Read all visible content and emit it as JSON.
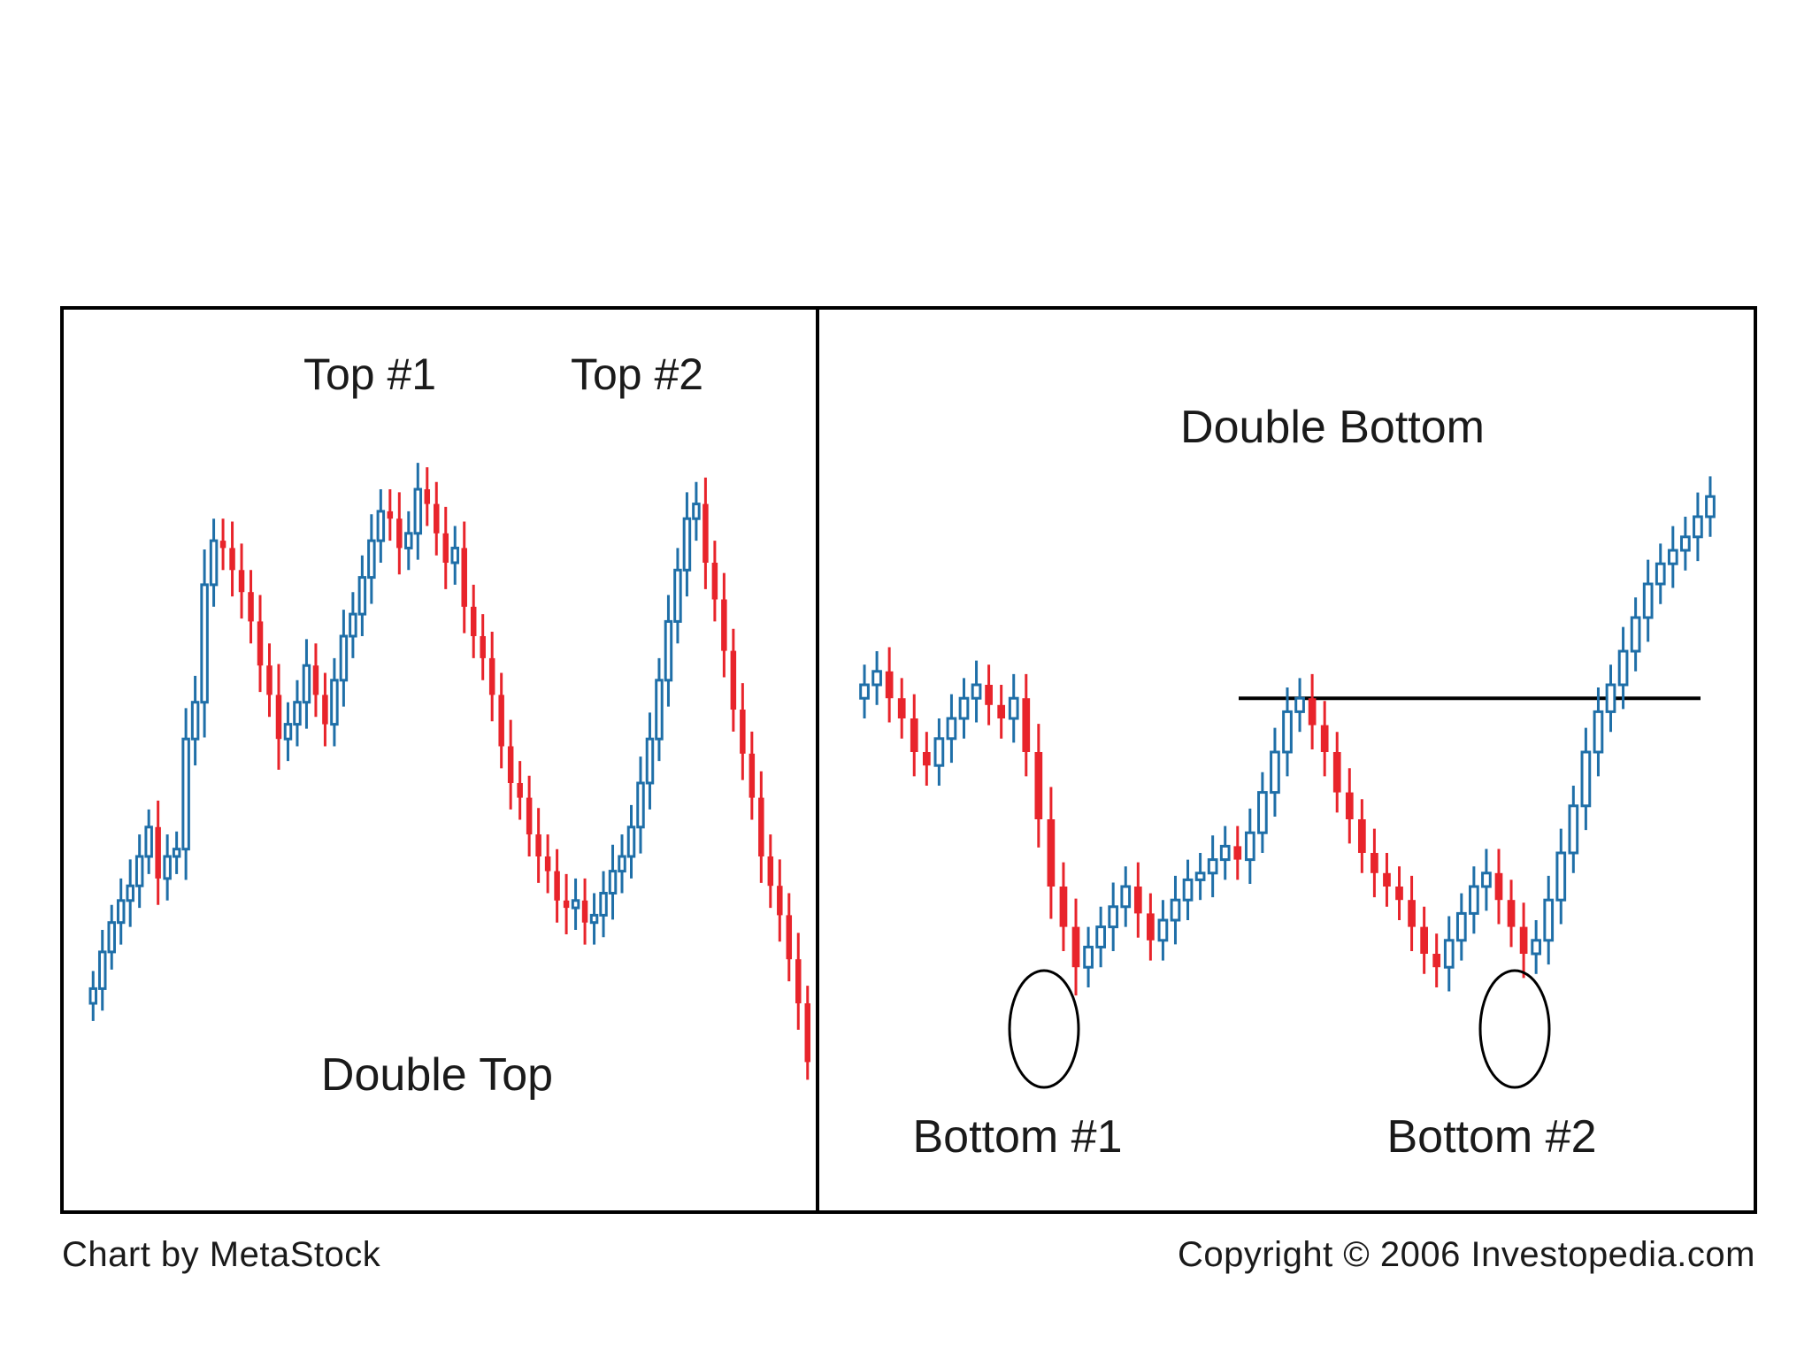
{
  "colors": {
    "up": "#1f6fa8",
    "down": "#e8242b",
    "frame": "#000000",
    "text": "#1a1a1a"
  },
  "footer": {
    "left": "Chart by MetaStock",
    "right": "Copyright © 2006 Investopedia.com"
  },
  "chart_data": [
    {
      "type": "candlestick",
      "title": "Double Top",
      "annotations": [
        {
          "text": "Top #1"
        },
        {
          "text": "Top #2"
        }
      ],
      "ylim": [
        0,
        100
      ],
      "closes": [
        22,
        27,
        31,
        34,
        36,
        40,
        44,
        37,
        40,
        41,
        56,
        61,
        77,
        83,
        82,
        79,
        76,
        72,
        66,
        62,
        56,
        58,
        61,
        66,
        62,
        58,
        64,
        70,
        73,
        78,
        83,
        87,
        86,
        82,
        84,
        90,
        88,
        84,
        80,
        82,
        74,
        70,
        67,
        62,
        55,
        50,
        48,
        43,
        40,
        38,
        34,
        33,
        34,
        31,
        32,
        35,
        38,
        40,
        44,
        50,
        56,
        64,
        72,
        79,
        86,
        88,
        80,
        75,
        68,
        60,
        54,
        48,
        40,
        36,
        32,
        26,
        20,
        12
      ],
      "ranges": [
        4,
        5,
        4,
        5,
        6,
        5,
        4,
        6,
        5,
        4,
        7,
        6,
        8,
        5,
        5,
        6,
        6,
        5,
        6,
        5,
        7,
        5,
        5,
        6,
        5,
        5,
        5,
        6,
        5,
        5,
        6,
        5,
        5,
        6,
        5,
        6,
        5,
        5,
        6,
        5,
        6,
        5,
        5,
        6,
        5,
        6,
        5,
        5,
        6,
        5,
        5,
        6,
        5,
        5,
        5,
        5,
        6,
        5,
        5,
        6,
        6,
        5,
        6,
        5,
        6,
        5,
        6,
        5,
        6,
        5,
        6,
        5,
        6,
        5,
        6,
        5,
        6,
        4
      ]
    },
    {
      "type": "candlestick",
      "title": "Double Bottom",
      "annotations": [
        {
          "text": "Bottom #1"
        },
        {
          "text": "Bottom #2"
        }
      ],
      "ylim": [
        0,
        100
      ],
      "resistance_level": 58,
      "closes": [
        60,
        62,
        58,
        55,
        50,
        48,
        52,
        55,
        58,
        60,
        57,
        55,
        58,
        50,
        40,
        30,
        24,
        18,
        21,
        24,
        27,
        30,
        26,
        22,
        25,
        28,
        31,
        32,
        34,
        36,
        34,
        38,
        44,
        50,
        56,
        58,
        54,
        50,
        44,
        40,
        35,
        32,
        30,
        28,
        24,
        20,
        18,
        22,
        26,
        30,
        32,
        28,
        24,
        20,
        22,
        28,
        35,
        42,
        50,
        56,
        60,
        65,
        70,
        75,
        78,
        80,
        82,
        85,
        88
      ],
      "ranges": [
        5,
        5,
        6,
        5,
        6,
        5,
        5,
        6,
        5,
        6,
        5,
        5,
        6,
        6,
        7,
        8,
        6,
        7,
        5,
        5,
        6,
        5,
        6,
        5,
        5,
        6,
        5,
        5,
        6,
        5,
        5,
        6,
        5,
        6,
        6,
        5,
        6,
        6,
        5,
        6,
        5,
        6,
        5,
        5,
        6,
        5,
        5,
        6,
        5,
        5,
        6,
        6,
        5,
        6,
        5,
        6,
        6,
        5,
        6,
        6,
        5,
        6,
        5,
        6,
        5,
        6,
        5,
        6,
        5
      ]
    }
  ]
}
